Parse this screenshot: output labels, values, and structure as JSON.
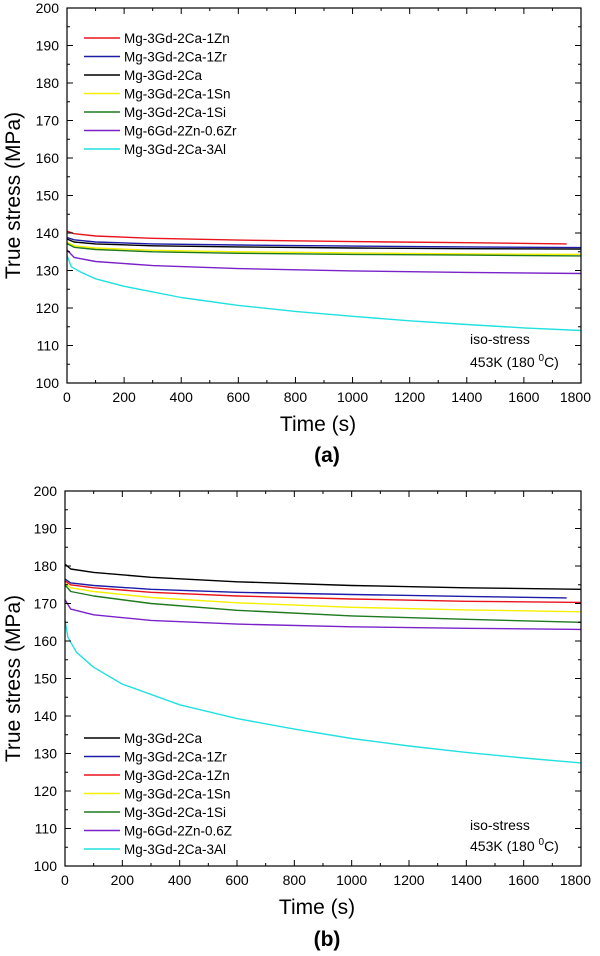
{
  "chart_data": [
    {
      "type": "line",
      "panel_label": "(a)",
      "xlabel": "Time (s)",
      "ylabel": "True stress (MPa)",
      "xlim": [
        0,
        1800
      ],
      "ylim": [
        100,
        200
      ],
      "xticks": [
        0,
        200,
        400,
        600,
        800,
        1000,
        1200,
        1400,
        1600,
        1800
      ],
      "yticks": [
        100,
        110,
        120,
        130,
        140,
        150,
        160,
        170,
        180,
        190,
        200
      ],
      "legend_position": "top-left",
      "annotation": {
        "line1": "iso-stress",
        "line2_prefix": "453K (180 ",
        "line2_sup": "0",
        "line2_suffix": "C)"
      },
      "series": [
        {
          "name": "Mg-3Gd-2Ca-1Zn",
          "color": "#e8141c",
          "x": [
            0,
            25,
            100,
            300,
            600,
            1000,
            1400,
            1750
          ],
          "y": [
            140.5,
            139.8,
            139.2,
            138.6,
            138.1,
            137.7,
            137.4,
            137.1
          ]
        },
        {
          "name": "Mg-3Gd-2Ca-1Zr",
          "color": "#1c1ca8",
          "x": [
            0,
            25,
            100,
            300,
            600,
            1000,
            1400,
            1800
          ],
          "y": [
            138.8,
            138.2,
            137.6,
            137.1,
            136.8,
            136.5,
            136.3,
            136.1
          ]
        },
        {
          "name": "Mg-3Gd-2Ca",
          "color": "#000000",
          "x": [
            0,
            25,
            100,
            300,
            600,
            1000,
            1400,
            1800
          ],
          "y": [
            138.4,
            137.6,
            137.1,
            136.6,
            136.3,
            136.0,
            135.8,
            135.7
          ]
        },
        {
          "name": "Mg-3Gd-2Ca-1Sn",
          "color": "#f4f000",
          "x": [
            0,
            25,
            100,
            300,
            600,
            1000,
            1400,
            1800
          ],
          "y": [
            137.5,
            136.6,
            136.0,
            135.4,
            135.0,
            134.7,
            134.4,
            134.3
          ]
        },
        {
          "name": "Mg-3Gd-2Ca-1Si",
          "color": "#1e7a1e",
          "x": [
            0,
            25,
            100,
            300,
            600,
            1000,
            1400,
            1800
          ],
          "y": [
            137.2,
            136.2,
            135.6,
            135.0,
            134.6,
            134.3,
            134.1,
            133.9
          ]
        },
        {
          "name": "Mg-6Gd-2Zn-0.6Zr",
          "color": "#7a22c8",
          "x": [
            0,
            25,
            100,
            300,
            600,
            1000,
            1400,
            1800
          ],
          "y": [
            135.5,
            133.5,
            132.4,
            131.3,
            130.5,
            129.9,
            129.5,
            129.2
          ]
        },
        {
          "name": "Mg-3Gd-2Ca-3Al",
          "color": "#22e0e0",
          "x": [
            0,
            15,
            50,
            100,
            200,
            400,
            600,
            800,
            1000,
            1200,
            1400,
            1600,
            1800
          ],
          "y": [
            134.0,
            131.0,
            129.5,
            127.8,
            125.8,
            122.8,
            120.7,
            119.1,
            117.8,
            116.6,
            115.6,
            114.7,
            114.0
          ]
        }
      ]
    },
    {
      "type": "line",
      "panel_label": "(b)",
      "xlabel": "Time (s)",
      "ylabel": "True stress (MPa)",
      "xlim": [
        0,
        1800
      ],
      "ylim": [
        100,
        200
      ],
      "xticks": [
        0,
        200,
        400,
        600,
        800,
        1000,
        1200,
        1400,
        1600,
        1800
      ],
      "yticks": [
        100,
        110,
        120,
        130,
        140,
        150,
        160,
        170,
        180,
        190,
        200
      ],
      "legend_position": "bottom-left",
      "annotation": {
        "line1": "iso-stress",
        "line2_prefix": "453K (180 ",
        "line2_sup": "0",
        "line2_suffix": "C)"
      },
      "series": [
        {
          "name": "Mg-3Gd-2Ca",
          "color": "#000000",
          "x": [
            0,
            20,
            100,
            300,
            600,
            1000,
            1400,
            1800
          ],
          "y": [
            180.5,
            179.2,
            178.3,
            177.0,
            175.8,
            174.8,
            174.2,
            173.8
          ]
        },
        {
          "name": "Mg-3Gd-2Ca-1Zr",
          "color": "#1c1ca8",
          "x": [
            0,
            20,
            100,
            300,
            600,
            1000,
            1400,
            1750
          ],
          "y": [
            176.5,
            175.5,
            174.8,
            173.8,
            173.0,
            172.4,
            171.9,
            171.5
          ]
        },
        {
          "name": "Mg-3Gd-2Ca-1Zn",
          "color": "#e8141c",
          "x": [
            0,
            20,
            100,
            300,
            600,
            1000,
            1400,
            1800
          ],
          "y": [
            176.0,
            175.0,
            174.2,
            173.0,
            172.0,
            171.2,
            170.6,
            170.3
          ]
        },
        {
          "name": "Mg-3Gd-2Ca-1Sn",
          "color": "#f4f000",
          "x": [
            0,
            20,
            100,
            300,
            600,
            1000,
            1400,
            1800
          ],
          "y": [
            175.5,
            174.2,
            173.2,
            171.6,
            170.2,
            169.0,
            168.3,
            167.8
          ]
        },
        {
          "name": "Mg-3Gd-2Ca-1Si",
          "color": "#1e7a1e",
          "x": [
            0,
            20,
            100,
            300,
            600,
            1000,
            1400,
            1800
          ],
          "y": [
            175.0,
            173.2,
            172.0,
            170.0,
            168.2,
            166.7,
            165.8,
            165.0
          ]
        },
        {
          "name": "Mg-6Gd-2Zn-0.6Z",
          "color": "#7a22c8",
          "x": [
            0,
            20,
            100,
            300,
            600,
            1000,
            1400,
            1800
          ],
          "y": [
            171.0,
            168.5,
            167.0,
            165.5,
            164.5,
            163.8,
            163.4,
            163.1
          ]
        },
        {
          "name": "Mg-3Gd-2Ca-3Al",
          "color": "#22e0e0",
          "x": [
            0,
            10,
            40,
            100,
            200,
            400,
            600,
            800,
            1000,
            1200,
            1400,
            1600,
            1800
          ],
          "y": [
            165.5,
            161.0,
            157.0,
            153.0,
            148.5,
            143.0,
            139.3,
            136.5,
            134.0,
            132.0,
            130.3,
            128.8,
            127.5
          ]
        }
      ]
    }
  ]
}
